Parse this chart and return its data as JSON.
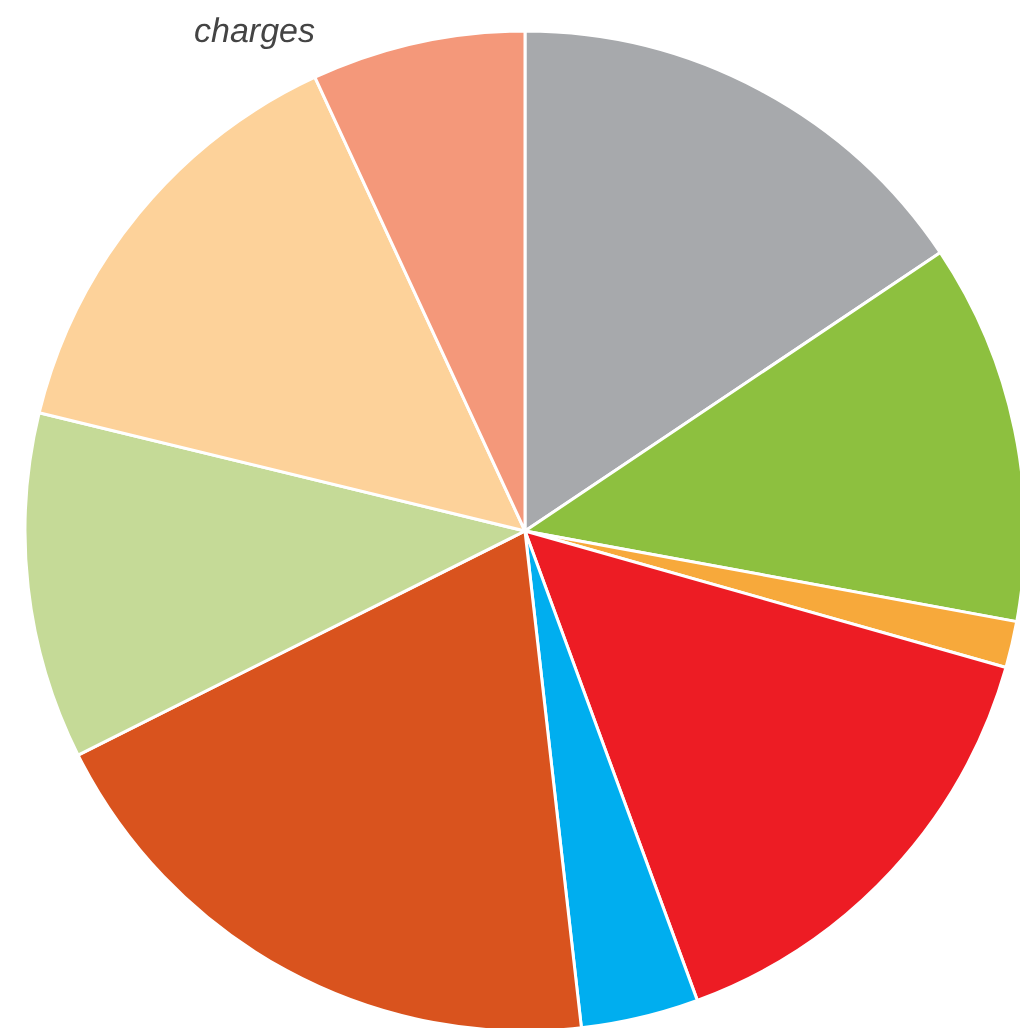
{
  "chart_data": {
    "type": "pie",
    "categories": [
      null,
      null,
      null,
      null,
      null,
      null,
      null,
      null,
      "charges"
    ],
    "values": [
      15.6,
      12.3,
      1.5,
      15.0,
      3.8,
      19.4,
      11.2,
      14.3,
      6.9
    ],
    "colors": [
      "#a7a9ac",
      "#8dc03f",
      "#f7a93b",
      "#ed1c24",
      "#00aeef",
      "#d9531e",
      "#c5da97",
      "#fdd29a",
      "#f4987a"
    ]
  }
}
